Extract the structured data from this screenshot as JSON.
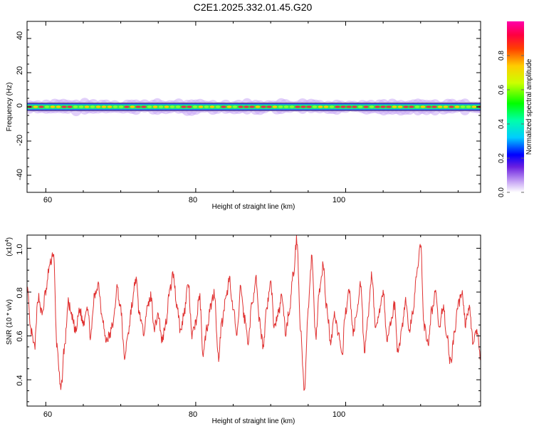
{
  "title": "C2E1.2025.332.01.45.G20",
  "top_panel": {
    "xlabel": "Height of straight line (km)",
    "ylabel": "Frequency (Hz)",
    "colorbar_label": "Normalized spectral amplitude",
    "x_ticks": [
      "60",
      "80",
      "100"
    ],
    "y_ticks": [
      "40",
      "20",
      "0",
      "-20",
      "-40"
    ],
    "colorbar_ticks": [
      "0.0",
      "0.2",
      "0.4",
      "0.6",
      "0.8"
    ]
  },
  "bottom_panel": {
    "xlabel": "Height of straight line (km)",
    "ylabel": "SNR (10 * v/v)",
    "multiplier": "(x10",
    "multiplier_exp": "4",
    "multiplier_close": ")",
    "x_ticks": [
      "60",
      "80",
      "100"
    ],
    "y_ticks": [
      "1.0",
      "0.8",
      "0.6",
      "0.4"
    ]
  },
  "colors": {
    "snr_line": "#e03030",
    "band_core": "#e8304a",
    "band_mid": "#30e050",
    "band_edge": "#2020e0",
    "band_halo": "#c9a8f5"
  },
  "chart_data": [
    {
      "type": "heatmap",
      "title": "C2E1.2025.332.01.45.G20",
      "xlabel": "Height of straight line (km)",
      "ylabel": "Frequency (Hz)",
      "xlim": [
        57.5,
        118
      ],
      "ylim": [
        -50,
        50
      ],
      "colorbar": {
        "label": "Normalized spectral amplitude",
        "range": [
          0,
          1
        ],
        "colormap": "rainbow"
      },
      "band_center_hz": 0,
      "band_halfwidth_hz": [
        -4,
        4
      ],
      "peak_amplitude_near_hz": 0
    },
    {
      "type": "line",
      "xlabel": "Height of straight line (km)",
      "ylabel": "SNR (10 * v/v)",
      "y_multiplier": "x10^4",
      "xlim": [
        57.5,
        118
      ],
      "ylim": [
        0.28,
        1.06
      ],
      "x": [
        57.5,
        58.0,
        58.5,
        59.0,
        59.5,
        60.0,
        60.5,
        61.0,
        61.5,
        62.0,
        62.5,
        63.0,
        63.5,
        64.0,
        64.5,
        65.0,
        65.5,
        66.0,
        66.5,
        67.0,
        67.5,
        68.0,
        68.5,
        69.0,
        69.5,
        70.0,
        70.5,
        71.0,
        71.5,
        72.0,
        72.5,
        73.0,
        73.5,
        74.0,
        74.5,
        75.0,
        75.5,
        76.0,
        76.5,
        77.0,
        77.5,
        78.0,
        78.5,
        79.0,
        79.5,
        80.0,
        80.5,
        81.0,
        81.5,
        82.0,
        82.5,
        83.0,
        83.5,
        84.0,
        84.5,
        85.0,
        85.5,
        86.0,
        86.5,
        87.0,
        87.5,
        88.0,
        88.5,
        89.0,
        89.5,
        90.0,
        90.5,
        91.0,
        91.5,
        92.0,
        92.5,
        93.0,
        93.5,
        94.0,
        94.5,
        95.0,
        95.5,
        96.0,
        96.5,
        97.0,
        97.5,
        98.0,
        98.5,
        99.0,
        99.5,
        100.0,
        100.5,
        101.0,
        101.5,
        102.0,
        102.5,
        103.0,
        103.5,
        104.0,
        104.5,
        105.0,
        105.5,
        106.0,
        106.5,
        107.0,
        107.5,
        108.0,
        108.5,
        109.0,
        109.5,
        110.0,
        110.5,
        111.0,
        111.5,
        112.0,
        112.5,
        113.0,
        113.5,
        114.0,
        114.5,
        115.0,
        115.5,
        116.0,
        116.5,
        117.0,
        117.5,
        118.0
      ],
      "y": [
        0.82,
        0.62,
        0.55,
        0.78,
        0.7,
        0.8,
        0.92,
        0.98,
        0.55,
        0.35,
        0.55,
        0.75,
        0.68,
        0.62,
        0.72,
        0.66,
        0.74,
        0.6,
        0.78,
        0.84,
        0.7,
        0.58,
        0.6,
        0.66,
        0.82,
        0.72,
        0.5,
        0.62,
        0.74,
        0.86,
        0.7,
        0.62,
        0.72,
        0.78,
        0.64,
        0.7,
        0.58,
        0.66,
        0.8,
        0.88,
        0.74,
        0.62,
        0.72,
        0.84,
        0.6,
        0.66,
        0.78,
        0.52,
        0.64,
        0.74,
        0.8,
        0.5,
        0.66,
        0.76,
        0.86,
        0.72,
        0.6,
        0.82,
        0.68,
        0.58,
        0.74,
        0.86,
        0.66,
        0.56,
        0.74,
        0.84,
        0.64,
        0.7,
        0.78,
        0.62,
        0.72,
        0.88,
        1.04,
        0.62,
        0.34,
        0.72,
        0.96,
        0.6,
        0.8,
        0.92,
        0.72,
        0.58,
        0.7,
        0.62,
        0.5,
        0.72,
        0.8,
        0.62,
        0.7,
        0.84,
        0.54,
        0.7,
        0.88,
        0.62,
        0.72,
        0.8,
        0.58,
        0.66,
        0.74,
        0.52,
        0.64,
        0.76,
        0.62,
        0.72,
        0.9,
        1.0,
        0.64,
        0.56,
        0.72,
        0.8,
        0.62,
        0.74,
        0.6,
        0.48,
        0.6,
        0.74,
        0.8,
        0.66,
        0.72,
        0.58,
        0.62,
        0.5
      ]
    }
  ]
}
